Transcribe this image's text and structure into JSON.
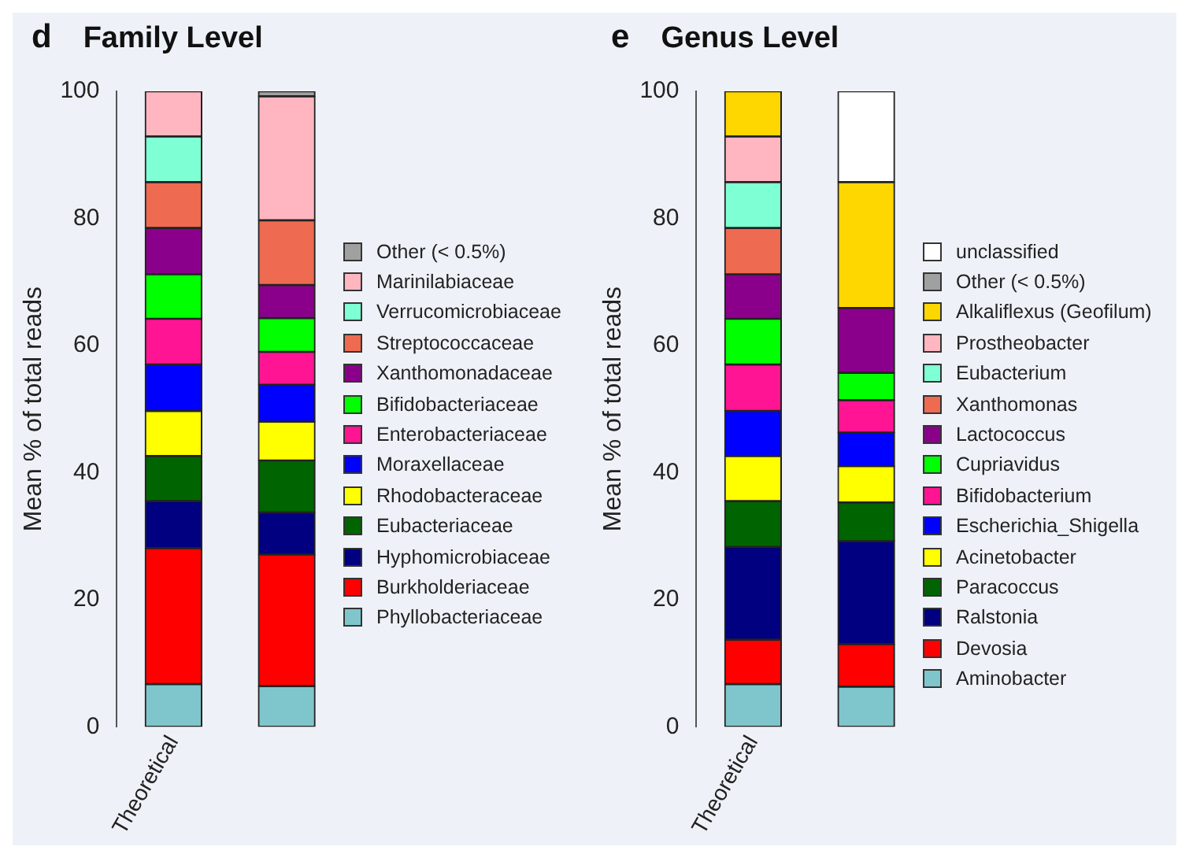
{
  "chart_data": [
    {
      "type": "bar",
      "title": "Family Level",
      "annotations": [
        "d"
      ],
      "ylabel": "Mean % of total reads",
      "categories": [
        "Theoretical",
        null
      ],
      "stacked": true,
      "ylim": [
        0,
        100
      ],
      "yticks": [
        0,
        20,
        40,
        60,
        80,
        100
      ],
      "legend": "right",
      "series": [
        {
          "name": "Phyllobacteriaceae",
          "color": "#7fc6cc",
          "values": [
            6.7,
            6.4
          ]
        },
        {
          "name": "Burkholderiaceae",
          "color": "#ff0000",
          "values": [
            21.4,
            20.7
          ]
        },
        {
          "name": "Hyphomicrobiaceae",
          "color": "#000080",
          "values": [
            7.4,
            6.6
          ]
        },
        {
          "name": "Eubacteriaceae",
          "color": "#006400",
          "values": [
            7.1,
            8.2
          ]
        },
        {
          "name": "Rhodobacteraceae",
          "color": "#ffff00",
          "values": [
            7.1,
            6.1
          ]
        },
        {
          "name": "Moraxellaceae",
          "color": "#0000ff",
          "values": [
            7.3,
            5.8
          ]
        },
        {
          "name": "Enterobacteriaceae",
          "color": "#ff1493",
          "values": [
            7.2,
            5.2
          ]
        },
        {
          "name": "Bifidobacteriaceae",
          "color": "#00ff00",
          "values": [
            7.0,
            5.3
          ]
        },
        {
          "name": "Xanthomonadaceae",
          "color": "#8b008b",
          "values": [
            7.3,
            5.2
          ]
        },
        {
          "name": "Streptococcaceae",
          "color": "#ee6a50",
          "values": [
            7.2,
            10.2
          ]
        },
        {
          "name": "Verrucomicrobiaceae",
          "color": "#7fffd4",
          "values": [
            7.2,
            0
          ]
        },
        {
          "name": "Marinilabiaceae",
          "color": "#ffb6c1",
          "values": [
            7.1,
            19.5
          ]
        },
        {
          "name": "Other (< 0.5%)",
          "color": "#a0a0a0",
          "values": [
            0,
            0.8
          ]
        }
      ]
    },
    {
      "type": "bar",
      "title": "Genus Level",
      "annotations": [
        "e"
      ],
      "ylabel": "Mean % of total reads",
      "categories": [
        "Theoretical",
        null
      ],
      "stacked": true,
      "ylim": [
        0,
        100
      ],
      "yticks": [
        0,
        20,
        40,
        60,
        80,
        100
      ],
      "legend": "right",
      "series": [
        {
          "name": "Aminobacter",
          "color": "#7fc6cc",
          "values": [
            6.7,
            6.3
          ]
        },
        {
          "name": "Devosia",
          "color": "#ff0000",
          "values": [
            7.0,
            6.7
          ]
        },
        {
          "name": "Ralstonia",
          "color": "#000080",
          "values": [
            14.6,
            16.2
          ]
        },
        {
          "name": "Paracoccus",
          "color": "#006400",
          "values": [
            7.2,
            6.1
          ]
        },
        {
          "name": "Acinetobacter",
          "color": "#ffff00",
          "values": [
            7.1,
            5.7
          ]
        },
        {
          "name": "Escherichia_Shigella",
          "color": "#0000ff",
          "values": [
            7.1,
            5.3
          ]
        },
        {
          "name": "Bifidobacterium",
          "color": "#ff1493",
          "values": [
            7.3,
            5.1
          ]
        },
        {
          "name": "Cupriavidus",
          "color": "#00ff00",
          "values": [
            7.2,
            4.3
          ]
        },
        {
          "name": "Lactococcus",
          "color": "#8b008b",
          "values": [
            7.0,
            10.2
          ]
        },
        {
          "name": "Xanthomonas",
          "color": "#ee6a50",
          "values": [
            7.3,
            0
          ]
        },
        {
          "name": "Eubacterium",
          "color": "#7fffd4",
          "values": [
            7.2,
            0
          ]
        },
        {
          "name": "Prostheobacter",
          "color": "#ffb6c1",
          "values": [
            7.2,
            0
          ]
        },
        {
          "name": "Alkaliflexus (Geofilum)",
          "color": "#ffd700",
          "values": [
            7.1,
            19.8
          ]
        },
        {
          "name": "Other (< 0.5%)",
          "color": "#a0a0a0",
          "values": [
            0,
            0
          ]
        },
        {
          "name": "unclassified",
          "color": "#ffffff",
          "values": [
            0,
            14.3
          ]
        }
      ]
    }
  ]
}
